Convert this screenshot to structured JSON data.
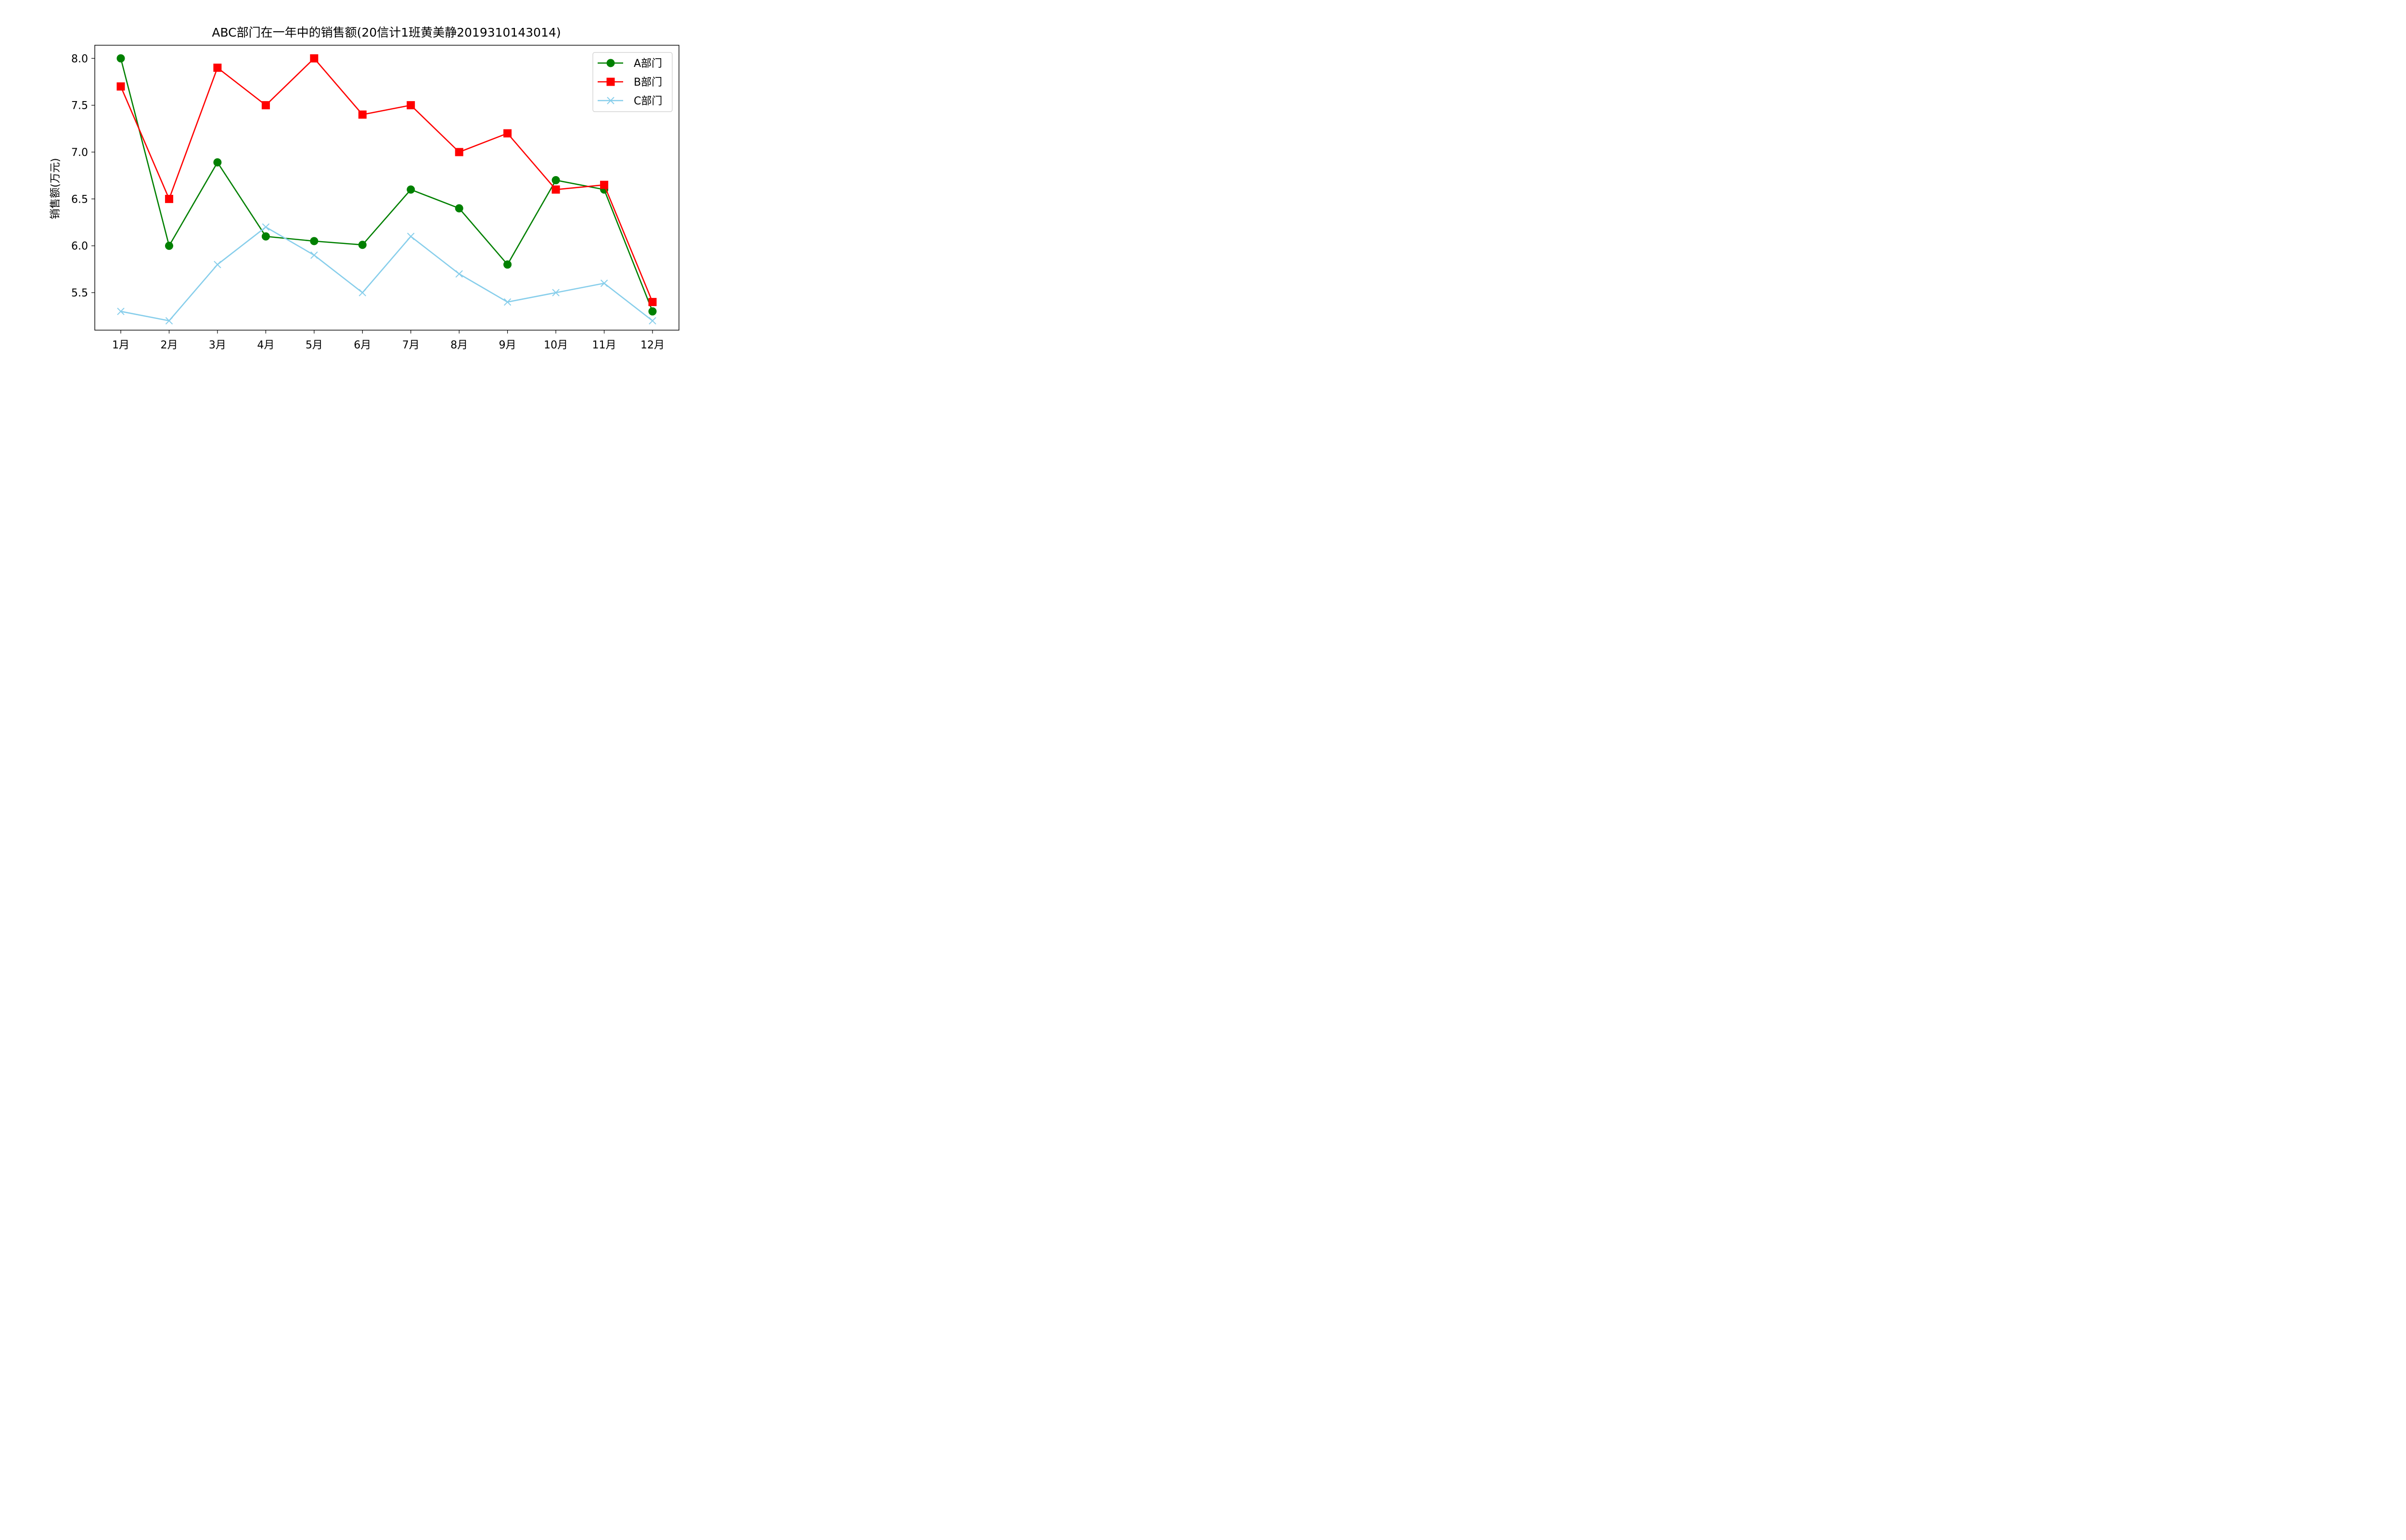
{
  "chart_data": {
    "type": "line",
    "title": "ABC部门在一年中的销售额(20信计1班黄美静2019310143014)",
    "xlabel": "",
    "ylabel": "销售额(万元)",
    "categories": [
      "1月",
      "2月",
      "3月",
      "4月",
      "5月",
      "6月",
      "7月",
      "8月",
      "9月",
      "10月",
      "11月",
      "12月"
    ],
    "ylim": [
      5.1,
      8.14
    ],
    "yticks": [
      5.5,
      6.0,
      6.5,
      7.0,
      7.5,
      8.0
    ],
    "ytick_labels": [
      "5.5",
      "6.0",
      "6.5",
      "7.0",
      "7.5",
      "8.0"
    ],
    "grid": false,
    "legend_position": "top-right",
    "series": [
      {
        "name": "A部门",
        "color": "#008000",
        "marker": "circle",
        "values": [
          8.0,
          6.0,
          6.89,
          6.1,
          6.05,
          6.01,
          6.6,
          6.4,
          5.8,
          6.7,
          6.6,
          5.3
        ]
      },
      {
        "name": "B部门",
        "color": "#ff0000",
        "marker": "square",
        "values": [
          7.7,
          6.5,
          7.9,
          7.5,
          8.0,
          7.4,
          7.5,
          7.0,
          7.2,
          6.6,
          6.65,
          5.4
        ]
      },
      {
        "name": "C部门",
        "color": "#87ceeb",
        "marker": "x",
        "values": [
          5.3,
          5.2,
          5.8,
          6.2,
          5.9,
          5.5,
          6.1,
          5.7,
          5.4,
          5.5,
          5.6,
          5.2
        ]
      }
    ]
  }
}
